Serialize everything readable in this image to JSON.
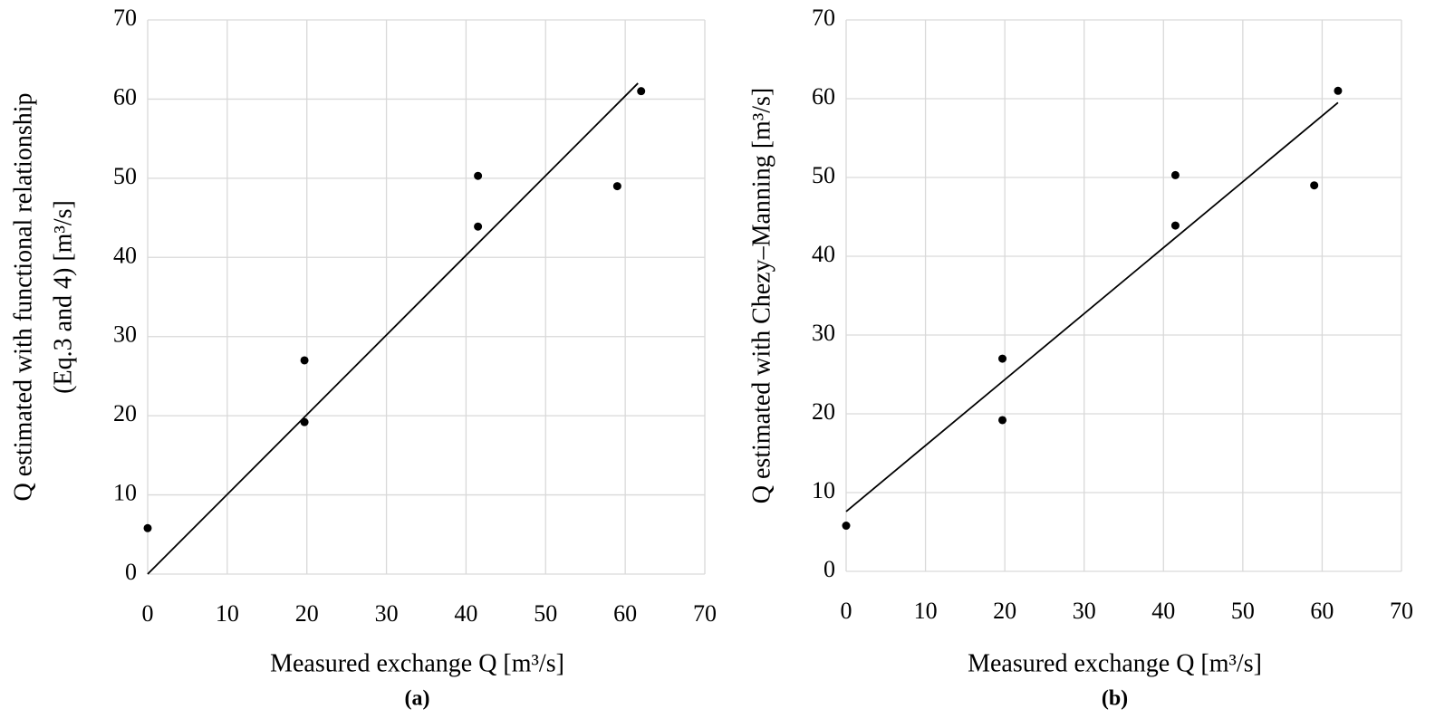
{
  "chart_data": [
    {
      "type": "scatter",
      "subtitle": "(a)",
      "xlabel": "Measured exchange Q  [m³/s]",
      "ylabel": [
        "Q estimated with functional relationship",
        "(Eq.3 and 4) [m³/s]"
      ],
      "points": {
        "color": "#000000",
        "x": [
          0,
          19.7,
          19.7,
          41.5,
          41.5,
          59,
          62
        ],
        "values": [
          5.8,
          27,
          19.2,
          50.3,
          43.9,
          49,
          61
        ]
      },
      "trendline": {
        "color": "#000000",
        "x": [
          0,
          61.6
        ],
        "values": [
          0,
          62
        ]
      },
      "xlim": [
        0,
        70
      ],
      "ylim": [
        0,
        70
      ],
      "xticks": [
        0,
        10,
        20,
        30,
        40,
        50,
        60,
        70
      ],
      "yticks": [
        0,
        10,
        20,
        30,
        40,
        50,
        60,
        70
      ],
      "grid": true
    },
    {
      "type": "scatter",
      "subtitle": "(b)",
      "xlabel": "Measured exchange Q  [m³/s]",
      "ylabel": [
        "Q estimated with Chezy–Manning [m³/s]"
      ],
      "points": {
        "color": "#000000",
        "x": [
          0,
          19.7,
          19.7,
          41.5,
          41.5,
          59,
          62
        ],
        "values": [
          5.8,
          27,
          19.2,
          50.3,
          43.9,
          49,
          61
        ]
      },
      "trendline": {
        "color": "#000000",
        "x": [
          0,
          62
        ],
        "values": [
          7.6,
          59.5
        ]
      },
      "xlim": [
        0,
        70
      ],
      "ylim": [
        0,
        70
      ],
      "xticks": [
        0,
        10,
        20,
        30,
        40,
        50,
        60,
        70
      ],
      "yticks": [
        0,
        10,
        20,
        30,
        40,
        50,
        60,
        70
      ],
      "grid": true
    }
  ]
}
